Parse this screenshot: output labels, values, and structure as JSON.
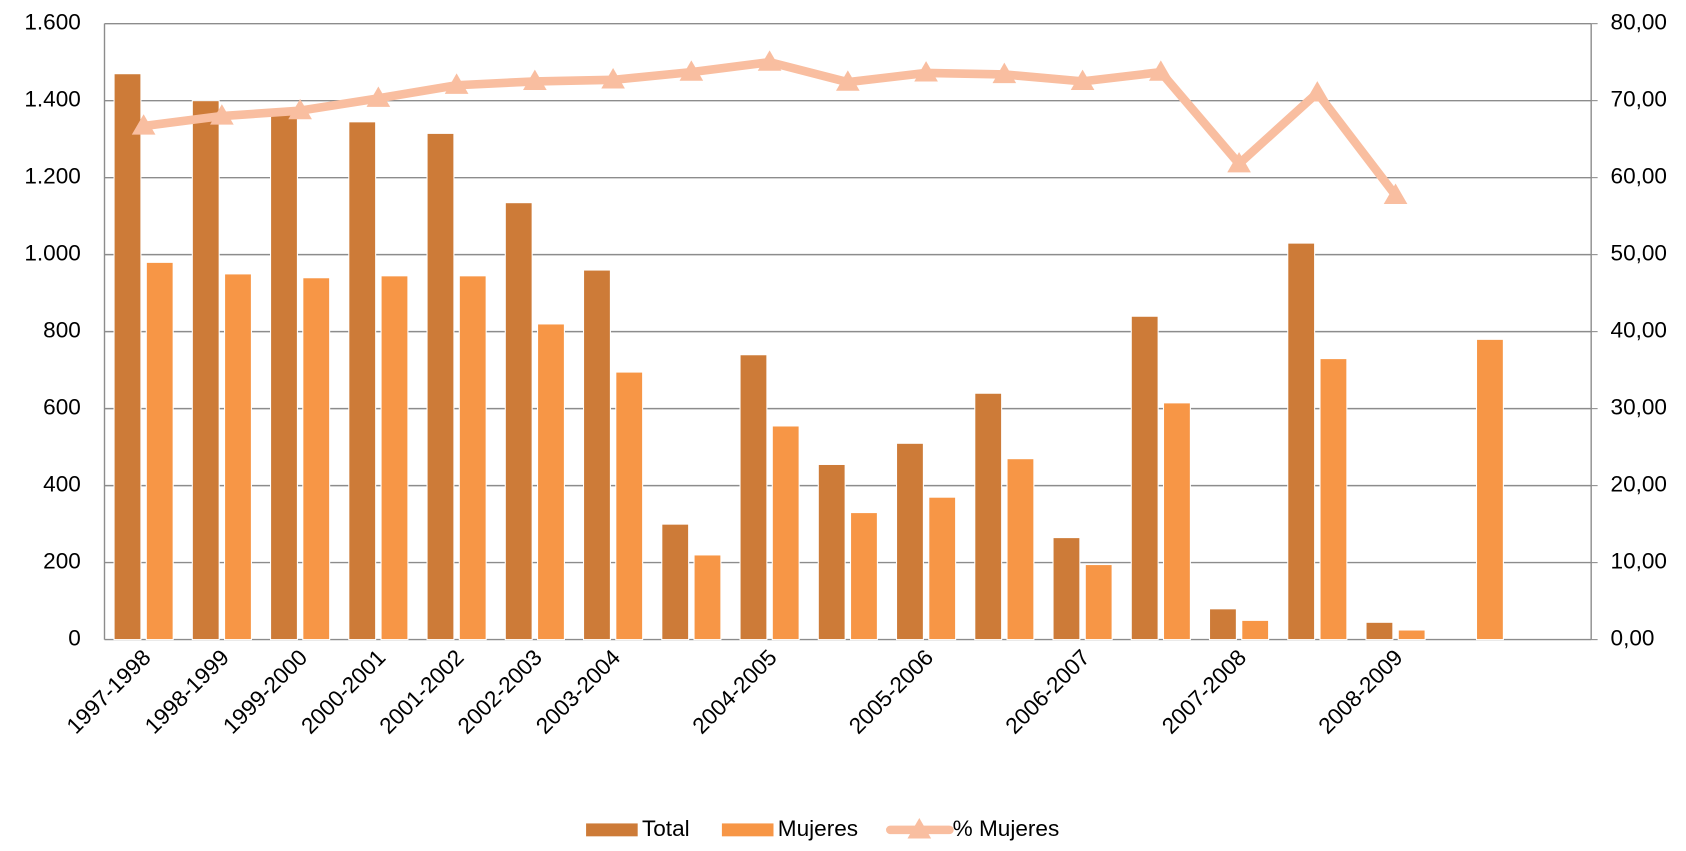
{
  "chart_data": {
    "type": "bar_line",
    "categories": [
      "1997-1998",
      "1998-1999",
      "1999-2000",
      "2000-2001",
      "2001-2002",
      "2002-2003",
      "2003-2004",
      null,
      "2004-2005",
      null,
      "2005-2006",
      null,
      "2006-2007",
      null,
      "2007-2008",
      null,
      "2008-2009",
      null,
      null
    ],
    "series": [
      {
        "name": "Total",
        "type": "bar",
        "color": "#cd7b38",
        "values": [
          1470,
          1400,
          1370,
          1345,
          1315,
          1135,
          960,
          300,
          740,
          455,
          510,
          640,
          265,
          840,
          80,
          1030,
          45,
          null,
          null
        ]
      },
      {
        "name": "Mujeres",
        "type": "bar",
        "color": "#f79646",
        "values": [
          980,
          950,
          940,
          945,
          945,
          820,
          695,
          220,
          555,
          330,
          370,
          470,
          195,
          615,
          50,
          730,
          25,
          780,
          null
        ]
      },
      {
        "name": "% Mujeres",
        "type": "line",
        "axis": "y2",
        "color": "#f9bea0",
        "values": [
          66.7,
          68,
          68.7,
          70.3,
          72,
          72.5,
          72.7,
          73.7,
          75,
          72.4,
          73.6,
          73.4,
          72.5,
          73.7,
          61.8,
          71,
          57.7,
          null,
          null
        ]
      }
    ],
    "ylim": [
      0,
      1600
    ],
    "yticks": [
      0,
      {
        "value": 200,
        "label": "200"
      },
      {
        "value": 400,
        "label": "400"
      },
      {
        "value": 600,
        "label": "600"
      },
      {
        "value": 800,
        "label": "800"
      },
      {
        "value": 1000,
        "label": "1.000"
      },
      {
        "value": 1200,
        "label": "1.200"
      },
      {
        "value": 1400,
        "label": "1.400"
      },
      {
        "value": 1600,
        "label": "1.600"
      }
    ],
    "y2lim": [
      0,
      80
    ],
    "y2ticks": [
      {
        "value": 0,
        "label": "0,00"
      },
      {
        "value": 10,
        "label": "10,00"
      },
      {
        "value": 20,
        "label": "20,00"
      },
      {
        "value": 30,
        "label": "30,00"
      },
      {
        "value": 40,
        "label": "40,00"
      },
      {
        "value": 50,
        "label": "50,00"
      },
      {
        "value": 60,
        "label": "60,00"
      },
      {
        "value": 70,
        "label": "70,00"
      },
      {
        "value": 80,
        "label": "80,00"
      }
    ],
    "grid": true,
    "legend": "bottom"
  }
}
